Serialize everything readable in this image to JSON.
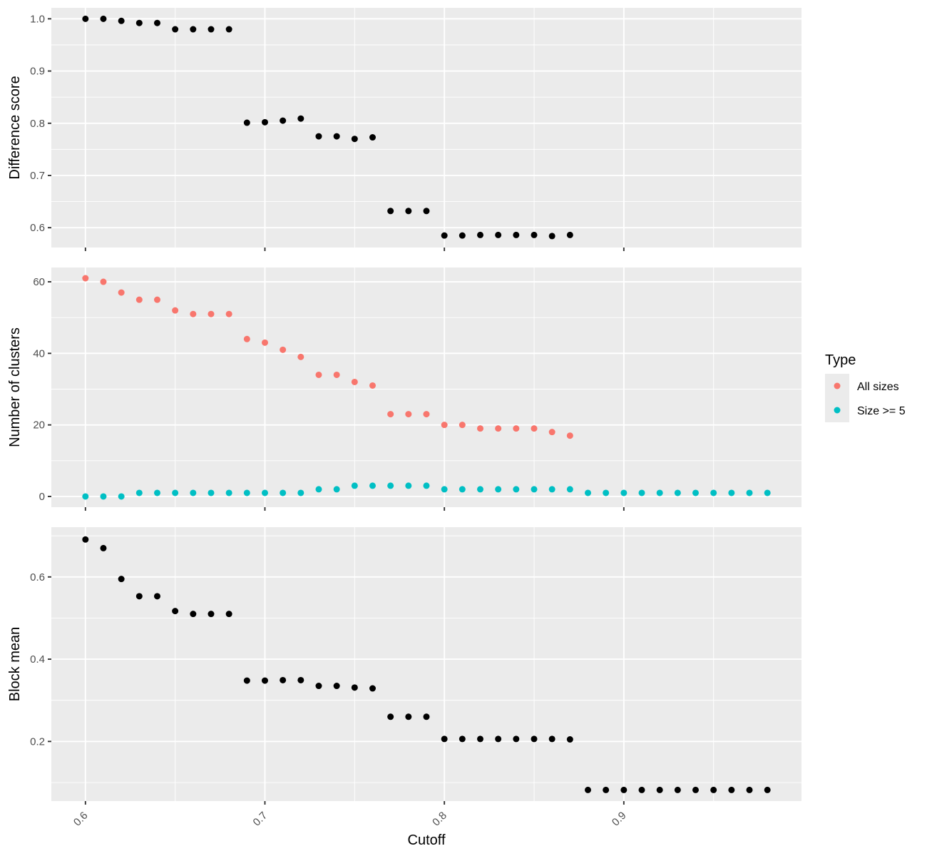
{
  "chart_data": [
    {
      "type": "scatter",
      "ylabel": "Difference score",
      "ylim": [
        0.562,
        1.021
      ],
      "yticks": [
        0.6,
        0.7,
        0.8,
        0.9,
        1.0
      ],
      "ytick_labels": [
        "0.6",
        "0.7",
        "0.8",
        "0.9",
        "1.0"
      ],
      "series": [
        {
          "color": "#000000",
          "x": [
            0.6,
            0.61,
            0.62,
            0.63,
            0.64,
            0.65,
            0.66,
            0.67,
            0.68,
            0.69,
            0.7,
            0.71,
            0.72,
            0.73,
            0.74,
            0.75,
            0.76,
            0.77,
            0.78,
            0.79,
            0.8,
            0.81,
            0.82,
            0.83,
            0.84,
            0.85,
            0.86,
            0.87
          ],
          "y": [
            1.0,
            1.0,
            0.996,
            0.992,
            0.992,
            0.98,
            0.98,
            0.98,
            0.98,
            0.801,
            0.802,
            0.805,
            0.809,
            0.775,
            0.775,
            0.77,
            0.773,
            0.632,
            0.632,
            0.632,
            0.585,
            0.585,
            0.586,
            0.586,
            0.586,
            0.586,
            0.584,
            0.586
          ]
        }
      ]
    },
    {
      "type": "scatter",
      "ylabel": "Number of clusters",
      "ylim": [
        -3,
        64
      ],
      "yticks": [
        0,
        20,
        40,
        60
      ],
      "ytick_labels": [
        "0",
        "20",
        "40",
        "60"
      ],
      "legend": {
        "title": "Type",
        "position": "right"
      },
      "series": [
        {
          "name": "All sizes",
          "color": "#F8766D",
          "x": [
            0.6,
            0.61,
            0.62,
            0.63,
            0.64,
            0.65,
            0.66,
            0.67,
            0.68,
            0.69,
            0.7,
            0.71,
            0.72,
            0.73,
            0.74,
            0.75,
            0.76,
            0.77,
            0.78,
            0.79,
            0.8,
            0.81,
            0.82,
            0.83,
            0.84,
            0.85,
            0.86,
            0.87
          ],
          "y": [
            61,
            60,
            57,
            55,
            55,
            52,
            51,
            51,
            51,
            44,
            43,
            41,
            39,
            34,
            34,
            32,
            31,
            23,
            23,
            23,
            20,
            20,
            19,
            19,
            19,
            19,
            18,
            17
          ]
        },
        {
          "name": "Size >= 5",
          "color": "#00BFC4",
          "x": [
            0.6,
            0.61,
            0.62,
            0.63,
            0.64,
            0.65,
            0.66,
            0.67,
            0.68,
            0.69,
            0.7,
            0.71,
            0.72,
            0.73,
            0.74,
            0.75,
            0.76,
            0.77,
            0.78,
            0.79,
            0.8,
            0.81,
            0.82,
            0.83,
            0.84,
            0.85,
            0.86,
            0.87,
            0.88,
            0.89,
            0.9,
            0.91,
            0.92,
            0.93,
            0.94,
            0.95,
            0.96,
            0.97,
            0.98
          ],
          "y": [
            0,
            0,
            0,
            1,
            1,
            1,
            1,
            1,
            1,
            1,
            1,
            1,
            1,
            2,
            2,
            3,
            3,
            3,
            3,
            3,
            2,
            2,
            2,
            2,
            2,
            2,
            2,
            2,
            1,
            1,
            1,
            1,
            1,
            1,
            1,
            1,
            1,
            1,
            1
          ]
        }
      ]
    },
    {
      "type": "scatter",
      "ylabel": "Block mean",
      "xlabel": "Cutoff",
      "ylim": [
        0.055,
        0.721
      ],
      "yticks": [
        0.2,
        0.4,
        0.6
      ],
      "ytick_labels": [
        "0.2",
        "0.4",
        "0.6"
      ],
      "series": [
        {
          "color": "#000000",
          "x": [
            0.6,
            0.61,
            0.62,
            0.63,
            0.64,
            0.65,
            0.66,
            0.67,
            0.68,
            0.69,
            0.7,
            0.71,
            0.72,
            0.73,
            0.74,
            0.75,
            0.76,
            0.77,
            0.78,
            0.79,
            0.8,
            0.81,
            0.82,
            0.83,
            0.84,
            0.85,
            0.86,
            0.87,
            0.88,
            0.89,
            0.9,
            0.91,
            0.92,
            0.93,
            0.94,
            0.95,
            0.96,
            0.97,
            0.98
          ],
          "y": [
            0.691,
            0.67,
            0.595,
            0.553,
            0.553,
            0.517,
            0.51,
            0.51,
            0.51,
            0.348,
            0.348,
            0.349,
            0.349,
            0.335,
            0.335,
            0.331,
            0.329,
            0.26,
            0.26,
            0.26,
            0.206,
            0.206,
            0.206,
            0.206,
            0.206,
            0.206,
            0.206,
            0.205,
            0.082,
            0.082,
            0.082,
            0.082,
            0.082,
            0.082,
            0.082,
            0.082,
            0.082,
            0.082,
            0.082
          ]
        }
      ]
    }
  ],
  "x_axis": {
    "label": "Cutoff",
    "xlim": [
      0.581,
      0.999
    ],
    "ticks": [
      0.6,
      0.7,
      0.8,
      0.9
    ],
    "tick_labels": [
      "0.6",
      "0.7",
      "0.8",
      "0.9"
    ]
  },
  "legend": {
    "title": "Type",
    "position": "right",
    "entries": [
      {
        "label": "All sizes",
        "color": "#F8766D"
      },
      {
        "label": "Size >= 5",
        "color": "#00BFC4"
      }
    ]
  }
}
